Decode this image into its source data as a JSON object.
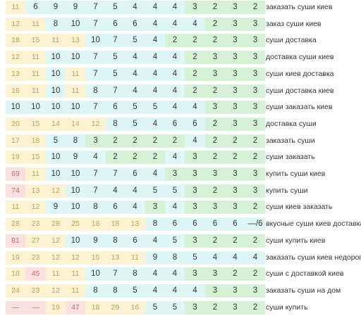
{
  "rows": [
    {
      "keyword": "заказать суши киев",
      "cells": [
        {
          "v": "11",
          "c": "o"
        },
        {
          "v": "6",
          "c": "c"
        },
        {
          "v": "9",
          "c": "c"
        },
        {
          "v": "9",
          "c": "c"
        },
        {
          "v": "7",
          "c": "c"
        },
        {
          "v": "5",
          "c": "c"
        },
        {
          "v": "4",
          "c": "c"
        },
        {
          "v": "4",
          "c": "c"
        },
        {
          "v": "4",
          "c": "c"
        },
        {
          "v": "3",
          "c": "g"
        },
        {
          "v": "2",
          "c": "g"
        },
        {
          "v": "3",
          "c": "g"
        },
        {
          "v": "2",
          "c": "g"
        }
      ]
    },
    {
      "keyword": "заказ суши киев",
      "cells": [
        {
          "v": "12",
          "c": "o"
        },
        {
          "v": "11",
          "c": "o"
        },
        {
          "v": "8",
          "c": "c"
        },
        {
          "v": "10",
          "c": "c"
        },
        {
          "v": "7",
          "c": "c"
        },
        {
          "v": "6",
          "c": "c"
        },
        {
          "v": "6",
          "c": "c"
        },
        {
          "v": "4",
          "c": "c"
        },
        {
          "v": "4",
          "c": "c"
        },
        {
          "v": "4",
          "c": "c"
        },
        {
          "v": "2",
          "c": "g"
        },
        {
          "v": "3",
          "c": "g"
        },
        {
          "v": "3",
          "c": "g"
        }
      ]
    },
    {
      "keyword": "суши доставка",
      "cells": [
        {
          "v": "18",
          "c": "o"
        },
        {
          "v": "15",
          "c": "o"
        },
        {
          "v": "11",
          "c": "o"
        },
        {
          "v": "13",
          "c": "o"
        },
        {
          "v": "10",
          "c": "c"
        },
        {
          "v": "7",
          "c": "c"
        },
        {
          "v": "5",
          "c": "c"
        },
        {
          "v": "4",
          "c": "c"
        },
        {
          "v": "2",
          "c": "g"
        },
        {
          "v": "2",
          "c": "g"
        },
        {
          "v": "2",
          "c": "g"
        },
        {
          "v": "3",
          "c": "g"
        },
        {
          "v": "3",
          "c": "g"
        }
      ]
    },
    {
      "keyword": "доставка суши киев",
      "cells": [
        {
          "v": "12",
          "c": "o"
        },
        {
          "v": "11",
          "c": "o"
        },
        {
          "v": "10",
          "c": "c"
        },
        {
          "v": "10",
          "c": "c"
        },
        {
          "v": "7",
          "c": "c"
        },
        {
          "v": "5",
          "c": "c"
        },
        {
          "v": "4",
          "c": "c"
        },
        {
          "v": "4",
          "c": "c"
        },
        {
          "v": "4",
          "c": "c"
        },
        {
          "v": "2",
          "c": "g"
        },
        {
          "v": "3",
          "c": "g"
        },
        {
          "v": "3",
          "c": "g"
        },
        {
          "v": "3",
          "c": "g"
        }
      ]
    },
    {
      "keyword": "суши киев доставка",
      "cells": [
        {
          "v": "13",
          "c": "o"
        },
        {
          "v": "11",
          "c": "o"
        },
        {
          "v": "10",
          "c": "c"
        },
        {
          "v": "11",
          "c": "o"
        },
        {
          "v": "7",
          "c": "c"
        },
        {
          "v": "5",
          "c": "c"
        },
        {
          "v": "4",
          "c": "c"
        },
        {
          "v": "4",
          "c": "c"
        },
        {
          "v": "4",
          "c": "c"
        },
        {
          "v": "2",
          "c": "g"
        },
        {
          "v": "3",
          "c": "g"
        },
        {
          "v": "3",
          "c": "g"
        },
        {
          "v": "3",
          "c": "g"
        }
      ]
    },
    {
      "keyword": "суши доставка киев",
      "cells": [
        {
          "v": "16",
          "c": "o"
        },
        {
          "v": "11",
          "c": "o"
        },
        {
          "v": "10",
          "c": "c"
        },
        {
          "v": "11",
          "c": "o"
        },
        {
          "v": "8",
          "c": "c"
        },
        {
          "v": "7",
          "c": "c"
        },
        {
          "v": "4",
          "c": "c"
        },
        {
          "v": "4",
          "c": "c"
        },
        {
          "v": "4",
          "c": "c"
        },
        {
          "v": "2",
          "c": "g"
        },
        {
          "v": "2",
          "c": "g"
        },
        {
          "v": "3",
          "c": "g"
        },
        {
          "v": "3",
          "c": "g"
        }
      ]
    },
    {
      "keyword": "суши заказать киев",
      "cells": [
        {
          "v": "10",
          "c": "c"
        },
        {
          "v": "10",
          "c": "c"
        },
        {
          "v": "10",
          "c": "c"
        },
        {
          "v": "10",
          "c": "c"
        },
        {
          "v": "7",
          "c": "c"
        },
        {
          "v": "6",
          "c": "c"
        },
        {
          "v": "5",
          "c": "c"
        },
        {
          "v": "5",
          "c": "c"
        },
        {
          "v": "4",
          "c": "c"
        },
        {
          "v": "4",
          "c": "c"
        },
        {
          "v": "3",
          "c": "g"
        },
        {
          "v": "3",
          "c": "g"
        },
        {
          "v": "3",
          "c": "g"
        }
      ]
    },
    {
      "keyword": "доставка суши",
      "cells": [
        {
          "v": "20",
          "c": "o"
        },
        {
          "v": "15",
          "c": "o"
        },
        {
          "v": "14",
          "c": "o"
        },
        {
          "v": "14",
          "c": "o"
        },
        {
          "v": "12",
          "c": "o"
        },
        {
          "v": "8",
          "c": "c"
        },
        {
          "v": "5",
          "c": "c"
        },
        {
          "v": "4",
          "c": "c"
        },
        {
          "v": "6",
          "c": "c"
        },
        {
          "v": "6",
          "c": "c"
        },
        {
          "v": "2",
          "c": "g"
        },
        {
          "v": "3",
          "c": "g"
        },
        {
          "v": "3",
          "c": "g"
        }
      ]
    },
    {
      "keyword": "заказать суши",
      "cells": [
        {
          "v": "17",
          "c": "o"
        },
        {
          "v": "18",
          "c": "o"
        },
        {
          "v": "5",
          "c": "c"
        },
        {
          "v": "8",
          "c": "c"
        },
        {
          "v": "3",
          "c": "g"
        },
        {
          "v": "2",
          "c": "g"
        },
        {
          "v": "2",
          "c": "g"
        },
        {
          "v": "2",
          "c": "g"
        },
        {
          "v": "2",
          "c": "g"
        },
        {
          "v": "4",
          "c": "c"
        },
        {
          "v": "2",
          "c": "g"
        },
        {
          "v": "2",
          "c": "g"
        },
        {
          "v": "2",
          "c": "g"
        }
      ]
    },
    {
      "keyword": "суши заказать",
      "cells": [
        {
          "v": "19",
          "c": "o"
        },
        {
          "v": "15",
          "c": "o"
        },
        {
          "v": "10",
          "c": "c"
        },
        {
          "v": "9",
          "c": "c"
        },
        {
          "v": "4",
          "c": "c"
        },
        {
          "v": "2",
          "c": "g"
        },
        {
          "v": "2",
          "c": "g"
        },
        {
          "v": "2",
          "c": "g"
        },
        {
          "v": "4",
          "c": "c"
        },
        {
          "v": "3",
          "c": "g"
        },
        {
          "v": "2",
          "c": "g"
        },
        {
          "v": "2",
          "c": "g"
        },
        {
          "v": "2",
          "c": "g"
        }
      ]
    },
    {
      "keyword": "купить суши киев",
      "cells": [
        {
          "v": "69",
          "c": "p"
        },
        {
          "v": "11",
          "c": "o"
        },
        {
          "v": "10",
          "c": "c"
        },
        {
          "v": "10",
          "c": "c"
        },
        {
          "v": "7",
          "c": "c"
        },
        {
          "v": "7",
          "c": "c"
        },
        {
          "v": "6",
          "c": "c"
        },
        {
          "v": "4",
          "c": "c"
        },
        {
          "v": "3",
          "c": "g"
        },
        {
          "v": "3",
          "c": "g"
        },
        {
          "v": "3",
          "c": "g"
        },
        {
          "v": "3",
          "c": "g"
        },
        {
          "v": "3",
          "c": "g"
        }
      ]
    },
    {
      "keyword": "купить суши",
      "cells": [
        {
          "v": "74",
          "c": "p"
        },
        {
          "v": "13",
          "c": "o"
        },
        {
          "v": "12",
          "c": "o"
        },
        {
          "v": "10",
          "c": "c"
        },
        {
          "v": "7",
          "c": "c"
        },
        {
          "v": "4",
          "c": "c"
        },
        {
          "v": "4",
          "c": "c"
        },
        {
          "v": "5",
          "c": "c"
        },
        {
          "v": "5",
          "c": "c"
        },
        {
          "v": "3",
          "c": "g"
        },
        {
          "v": "2",
          "c": "g"
        },
        {
          "v": "3",
          "c": "g"
        },
        {
          "v": "3",
          "c": "g"
        }
      ]
    },
    {
      "keyword": "суши киев заказать",
      "cells": [
        {
          "v": "11",
          "c": "o"
        },
        {
          "v": "12",
          "c": "o"
        },
        {
          "v": "9",
          "c": "c"
        },
        {
          "v": "10",
          "c": "c"
        },
        {
          "v": "8",
          "c": "c"
        },
        {
          "v": "6",
          "c": "c"
        },
        {
          "v": "4",
          "c": "c"
        },
        {
          "v": "3",
          "c": "g"
        },
        {
          "v": "4",
          "c": "c"
        },
        {
          "v": "3",
          "c": "g"
        },
        {
          "v": "3",
          "c": "g"
        },
        {
          "v": "3",
          "c": "g"
        },
        {
          "v": "2",
          "c": "g"
        }
      ]
    },
    {
      "keyword": "вкусные суши киев доставка",
      "cells": [
        {
          "v": "28",
          "c": "o"
        },
        {
          "v": "23",
          "c": "o"
        },
        {
          "v": "28",
          "c": "o"
        },
        {
          "v": "25",
          "c": "o"
        },
        {
          "v": "18",
          "c": "o"
        },
        {
          "v": "18",
          "c": "o"
        },
        {
          "v": "13",
          "c": "o"
        },
        {
          "v": "8",
          "c": "c"
        },
        {
          "v": "6",
          "c": "c"
        },
        {
          "v": "6",
          "c": "c"
        },
        {
          "v": "6",
          "c": "c"
        },
        {
          "v": "6",
          "c": "c"
        },
        {
          "v": "—/6",
          "c": "c"
        }
      ]
    },
    {
      "keyword": "суши купить киев",
      "cells": [
        {
          "v": "81",
          "c": "p"
        },
        {
          "v": "27",
          "c": "o"
        },
        {
          "v": "12",
          "c": "o"
        },
        {
          "v": "10",
          "c": "c"
        },
        {
          "v": "9",
          "c": "c"
        },
        {
          "v": "8",
          "c": "c"
        },
        {
          "v": "6",
          "c": "c"
        },
        {
          "v": "4",
          "c": "c"
        },
        {
          "v": "5",
          "c": "c"
        },
        {
          "v": "3",
          "c": "g"
        },
        {
          "v": "2",
          "c": "g"
        },
        {
          "v": "2",
          "c": "g"
        },
        {
          "v": "2",
          "c": "g"
        }
      ]
    },
    {
      "keyword": "заказать суши киев недорого",
      "cells": [
        {
          "v": "19",
          "c": "o"
        },
        {
          "v": "23",
          "c": "o"
        },
        {
          "v": "12",
          "c": "o"
        },
        {
          "v": "12",
          "c": "o"
        },
        {
          "v": "15",
          "c": "o"
        },
        {
          "v": "13",
          "c": "o"
        },
        {
          "v": "11",
          "c": "o"
        },
        {
          "v": "9",
          "c": "c"
        },
        {
          "v": "8",
          "c": "c"
        },
        {
          "v": "5",
          "c": "c"
        },
        {
          "v": "4",
          "c": "c"
        },
        {
          "v": "4",
          "c": "c"
        },
        {
          "v": "4",
          "c": "c"
        }
      ]
    },
    {
      "keyword": "суши с доставкой киев",
      "cells": [
        {
          "v": "18",
          "c": "o"
        },
        {
          "v": "45",
          "c": "p"
        },
        {
          "v": "11",
          "c": "o"
        },
        {
          "v": "11",
          "c": "o"
        },
        {
          "v": "10",
          "c": "c"
        },
        {
          "v": "7",
          "c": "c"
        },
        {
          "v": "8",
          "c": "c"
        },
        {
          "v": "4",
          "c": "c"
        },
        {
          "v": "4",
          "c": "c"
        },
        {
          "v": "3",
          "c": "g"
        },
        {
          "v": "3",
          "c": "g"
        },
        {
          "v": "2",
          "c": "g"
        },
        {
          "v": "2",
          "c": "g"
        }
      ]
    },
    {
      "keyword": "заказать суши на дом",
      "cells": [
        {
          "v": "24",
          "c": "o"
        },
        {
          "v": "23",
          "c": "o"
        },
        {
          "v": "12",
          "c": "o"
        },
        {
          "v": "11",
          "c": "o"
        },
        {
          "v": "8",
          "c": "c"
        },
        {
          "v": "8",
          "c": "c"
        },
        {
          "v": "5",
          "c": "c"
        },
        {
          "v": "4",
          "c": "c"
        },
        {
          "v": "4",
          "c": "c"
        },
        {
          "v": "4",
          "c": "c"
        },
        {
          "v": "3",
          "c": "g"
        },
        {
          "v": "3",
          "c": "g"
        },
        {
          "v": "3",
          "c": "g"
        }
      ]
    },
    {
      "keyword": "суши купить",
      "cells": [
        {
          "v": "—",
          "c": "p"
        },
        {
          "v": "—",
          "c": "p"
        },
        {
          "v": "19",
          "c": "o"
        },
        {
          "v": "47",
          "c": "p"
        },
        {
          "v": "18",
          "c": "o"
        },
        {
          "v": "29",
          "c": "o"
        },
        {
          "v": "16",
          "c": "o"
        },
        {
          "v": "5",
          "c": "c"
        },
        {
          "v": "5",
          "c": "c"
        },
        {
          "v": "3",
          "c": "g"
        },
        {
          "v": "2",
          "c": "g"
        },
        {
          "v": "3",
          "c": "g"
        },
        {
          "v": "2",
          "c": "g"
        }
      ]
    }
  ]
}
